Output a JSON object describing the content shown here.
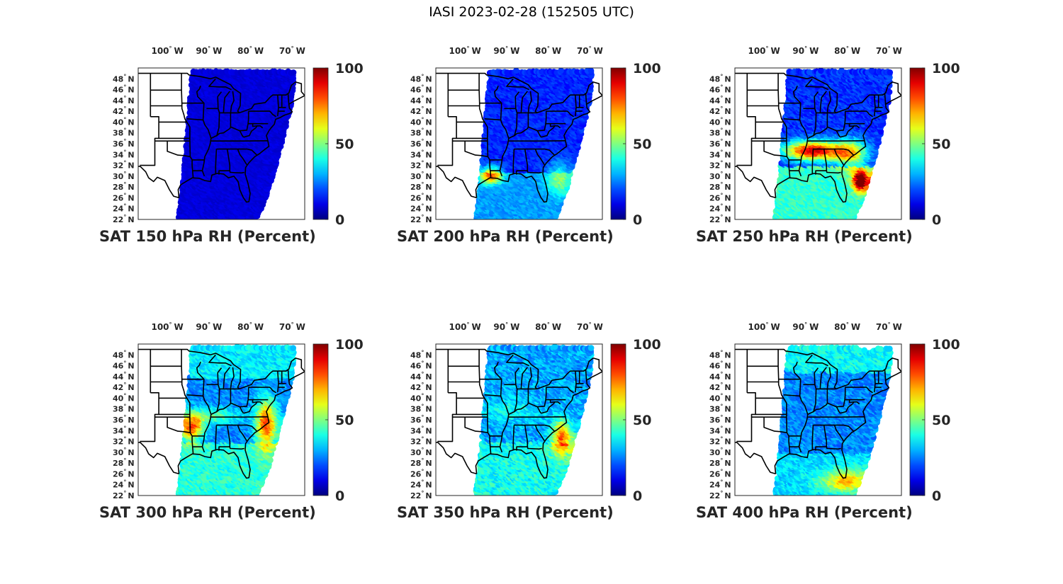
{
  "figure": {
    "title": "IASI 2023-02-28 (152505 UTC)"
  },
  "axes": {
    "lon_ticks": [
      {
        "value": -100,
        "label": "100",
        "hemi": "W"
      },
      {
        "value": -90,
        "label": "90",
        "hemi": "W"
      },
      {
        "value": -80,
        "label": "80",
        "hemi": "W"
      },
      {
        "value": -70,
        "label": "70",
        "hemi": "W"
      }
    ],
    "lat_ticks": [
      {
        "value": 22,
        "label": "22",
        "hemi": "N"
      },
      {
        "value": 24,
        "label": "24",
        "hemi": "N"
      },
      {
        "value": 26,
        "label": "26",
        "hemi": "N"
      },
      {
        "value": 28,
        "label": "28",
        "hemi": "N"
      },
      {
        "value": 30,
        "label": "30",
        "hemi": "N"
      },
      {
        "value": 32,
        "label": "32",
        "hemi": "N"
      },
      {
        "value": 34,
        "label": "34",
        "hemi": "N"
      },
      {
        "value": 36,
        "label": "36",
        "hemi": "N"
      },
      {
        "value": 38,
        "label": "38",
        "hemi": "N"
      },
      {
        "value": 40,
        "label": "40",
        "hemi": "N"
      },
      {
        "value": 42,
        "label": "42",
        "hemi": "N"
      },
      {
        "value": 44,
        "label": "44",
        "hemi": "N"
      },
      {
        "value": 46,
        "label": "46",
        "hemi": "N"
      },
      {
        "value": 48,
        "label": "48",
        "hemi": "N"
      }
    ],
    "lon_range": [
      -107,
      -67
    ],
    "lat_range": [
      22,
      50
    ],
    "degree_symbol": "°"
  },
  "colorbar": {
    "colormap": "jet",
    "range": [
      0,
      100
    ],
    "ticks": [
      "0",
      "50",
      "100"
    ]
  },
  "panels": [
    {
      "title": "SAT 150 hPa RH (Percent)",
      "level": 150
    },
    {
      "title": "SAT 200 hPa RH (Percent)",
      "level": 200
    },
    {
      "title": "SAT 250 hPa RH (Percent)",
      "level": 250
    },
    {
      "title": "SAT 300 hPa RH (Percent)",
      "level": 300
    },
    {
      "title": "SAT 350 hPa RH (Percent)",
      "level": 350
    },
    {
      "title": "SAT 400 hPa RH (Percent)",
      "level": 400
    }
  ]
}
